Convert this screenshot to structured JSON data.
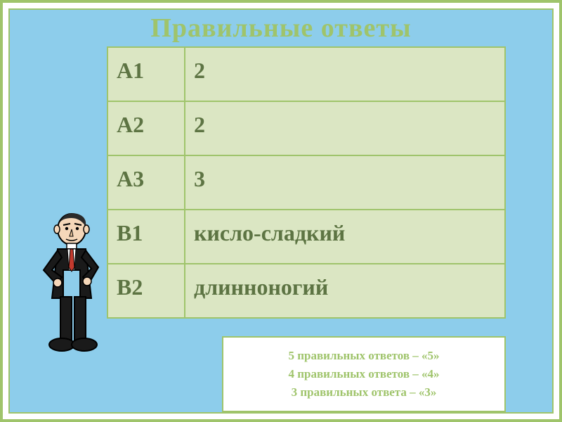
{
  "colors": {
    "outer_border": "#9fc46b",
    "page_bg": "#ffffff",
    "inner_bg": "#8dcdeb",
    "inner_border": "#9fc46b",
    "title": "#9fc46b",
    "table_bg": "#dbe6c3",
    "table_border": "#9fc46b",
    "table_key_text": "#5d7443",
    "table_val_text": "#5d7443",
    "scoring_border": "#9fc46b",
    "scoring_text": "#9fc46b"
  },
  "title": "Правильные ответы",
  "answers": {
    "rows": [
      {
        "key": "А1",
        "value": "2"
      },
      {
        "key": "А2",
        "value": "2"
      },
      {
        "key": "А3",
        "value": "3"
      },
      {
        "key": "В1",
        "value": "кисло-сладкий"
      },
      {
        "key": "В2",
        "value": "длинноногий"
      }
    ]
  },
  "scoring": {
    "lines": [
      "5 правильных ответов – «5»",
      "4 правильных ответов – «4»",
      "3 правильных ответа – «3»"
    ]
  },
  "character_alt": "cartoon-man"
}
